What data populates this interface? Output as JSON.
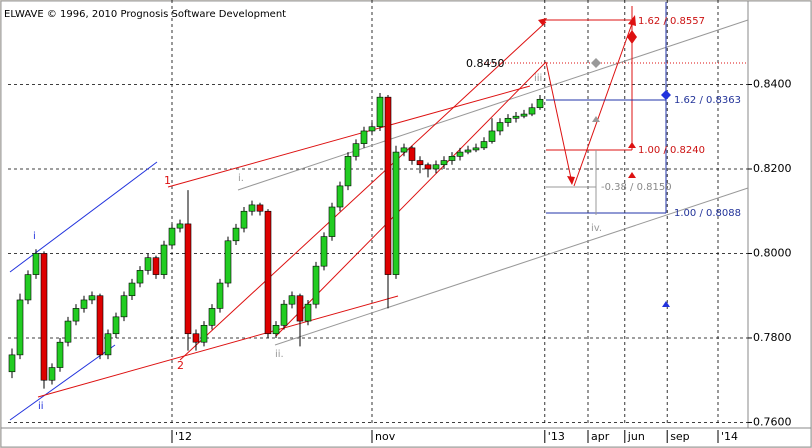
{
  "watermark": "ELWAVE © 1996, 2010 Prognosis Software Development",
  "chart_data": {
    "type": "candlestick",
    "up_color": "#22cc22",
    "down_color": "#dd0000",
    "grid": true,
    "xlim": [
      -0.5,
      92
    ],
    "xticks": [
      {
        "value": 20,
        "label": "'12"
      },
      {
        "value": 45,
        "label": "nov"
      },
      {
        "value": 66.6,
        "label": "'13"
      },
      {
        "value": 72,
        "label": "apr"
      },
      {
        "value": 76.6,
        "label": "jun"
      },
      {
        "value": 81.9,
        "label": "sep"
      },
      {
        "value": 88.25,
        "label": "'14"
      }
    ],
    "ylim": [
      0.7594,
      0.86
    ],
    "yticks": [
      {
        "value": 0.76,
        "label": "0.7600"
      },
      {
        "value": 0.78,
        "label": "0.7800"
      },
      {
        "value": 0.8,
        "label": "0.8000"
      },
      {
        "value": 0.82,
        "label": "0.8200"
      },
      {
        "value": 0.84,
        "label": "0.8400"
      }
    ],
    "ohlc": [
      [
        0.772,
        0.7775,
        0.7705,
        0.776
      ],
      [
        0.776,
        0.7905,
        0.775,
        0.789
      ],
      [
        0.789,
        0.796,
        0.788,
        0.795
      ],
      [
        0.795,
        0.801,
        0.794,
        0.8
      ],
      [
        0.8,
        0.8005,
        0.768,
        0.77
      ],
      [
        0.77,
        0.774,
        0.769,
        0.773
      ],
      [
        0.773,
        0.78,
        0.772,
        0.779
      ],
      [
        0.779,
        0.785,
        0.778,
        0.784
      ],
      [
        0.784,
        0.788,
        0.783,
        0.787
      ],
      [
        0.787,
        0.79,
        0.786,
        0.789
      ],
      [
        0.789,
        0.791,
        0.788,
        0.79
      ],
      [
        0.79,
        0.7905,
        0.775,
        0.776
      ],
      [
        0.776,
        0.782,
        0.775,
        0.781
      ],
      [
        0.781,
        0.786,
        0.78,
        0.785
      ],
      [
        0.785,
        0.791,
        0.784,
        0.79
      ],
      [
        0.79,
        0.794,
        0.789,
        0.793
      ],
      [
        0.793,
        0.797,
        0.792,
        0.796
      ],
      [
        0.796,
        0.8,
        0.795,
        0.799
      ],
      [
        0.799,
        0.7995,
        0.794,
        0.795
      ],
      [
        0.795,
        0.803,
        0.794,
        0.802
      ],
      [
        0.802,
        0.807,
        0.801,
        0.806
      ],
      [
        0.806,
        0.808,
        0.805,
        0.807
      ],
      [
        0.807,
        0.815,
        0.777,
        0.781
      ],
      [
        0.781,
        0.782,
        0.777,
        0.779
      ],
      [
        0.779,
        0.784,
        0.778,
        0.783
      ],
      [
        0.783,
        0.788,
        0.782,
        0.787
      ],
      [
        0.787,
        0.794,
        0.786,
        0.793
      ],
      [
        0.793,
        0.804,
        0.792,
        0.803
      ],
      [
        0.803,
        0.807,
        0.802,
        0.806
      ],
      [
        0.806,
        0.811,
        0.805,
        0.81
      ],
      [
        0.81,
        0.8125,
        0.809,
        0.8115
      ],
      [
        0.8115,
        0.812,
        0.809,
        0.81
      ],
      [
        0.81,
        0.8105,
        0.78,
        0.781
      ],
      [
        0.781,
        0.784,
        0.78,
        0.783
      ],
      [
        0.783,
        0.789,
        0.782,
        0.788
      ],
      [
        0.788,
        0.791,
        0.787,
        0.79
      ],
      [
        0.79,
        0.7905,
        0.778,
        0.784
      ],
      [
        0.784,
        0.789,
        0.783,
        0.788
      ],
      [
        0.788,
        0.798,
        0.787,
        0.797
      ],
      [
        0.797,
        0.805,
        0.796,
        0.804
      ],
      [
        0.804,
        0.812,
        0.803,
        0.811
      ],
      [
        0.811,
        0.817,
        0.81,
        0.816
      ],
      [
        0.816,
        0.824,
        0.815,
        0.823
      ],
      [
        0.823,
        0.827,
        0.822,
        0.826
      ],
      [
        0.826,
        0.83,
        0.825,
        0.829
      ],
      [
        0.829,
        0.831,
        0.828,
        0.83
      ],
      [
        0.83,
        0.838,
        0.829,
        0.837
      ],
      [
        0.837,
        0.8375,
        0.787,
        0.795
      ],
      [
        0.795,
        0.8255,
        0.794,
        0.824
      ],
      [
        0.824,
        0.826,
        0.823,
        0.825
      ],
      [
        0.825,
        0.8255,
        0.821,
        0.822
      ],
      [
        0.822,
        0.823,
        0.819,
        0.821
      ],
      [
        0.821,
        0.8215,
        0.818,
        0.82
      ],
      [
        0.82,
        0.822,
        0.819,
        0.821
      ],
      [
        0.821,
        0.823,
        0.82,
        0.822
      ],
      [
        0.822,
        0.824,
        0.821,
        0.823
      ],
      [
        0.823,
        0.825,
        0.822,
        0.824
      ],
      [
        0.824,
        0.8255,
        0.8235,
        0.8245
      ],
      [
        0.8245,
        0.826,
        0.824,
        0.825
      ],
      [
        0.825,
        0.8275,
        0.8245,
        0.8265
      ],
      [
        0.8265,
        0.832,
        0.826,
        0.829
      ],
      [
        0.829,
        0.832,
        0.828,
        0.831
      ],
      [
        0.831,
        0.833,
        0.83,
        0.832
      ],
      [
        0.832,
        0.8335,
        0.831,
        0.8325
      ],
      [
        0.8325,
        0.834,
        0.832,
        0.833
      ],
      [
        0.833,
        0.8355,
        0.8325,
        0.8345
      ],
      [
        0.8345,
        0.8375,
        0.834,
        0.8365
      ]
    ],
    "annotations": {
      "level": "0.8450",
      "waves": [
        "i",
        "ii",
        "1",
        "2",
        "i.",
        "ii.",
        "iii.",
        "iv."
      ],
      "fib": [
        "1.62 / 0.8557",
        "1.62 / 0.8363",
        "1.00 / 0.8240",
        "-0.38 / 0.8150",
        "1.00 / 0.8088"
      ]
    }
  }
}
